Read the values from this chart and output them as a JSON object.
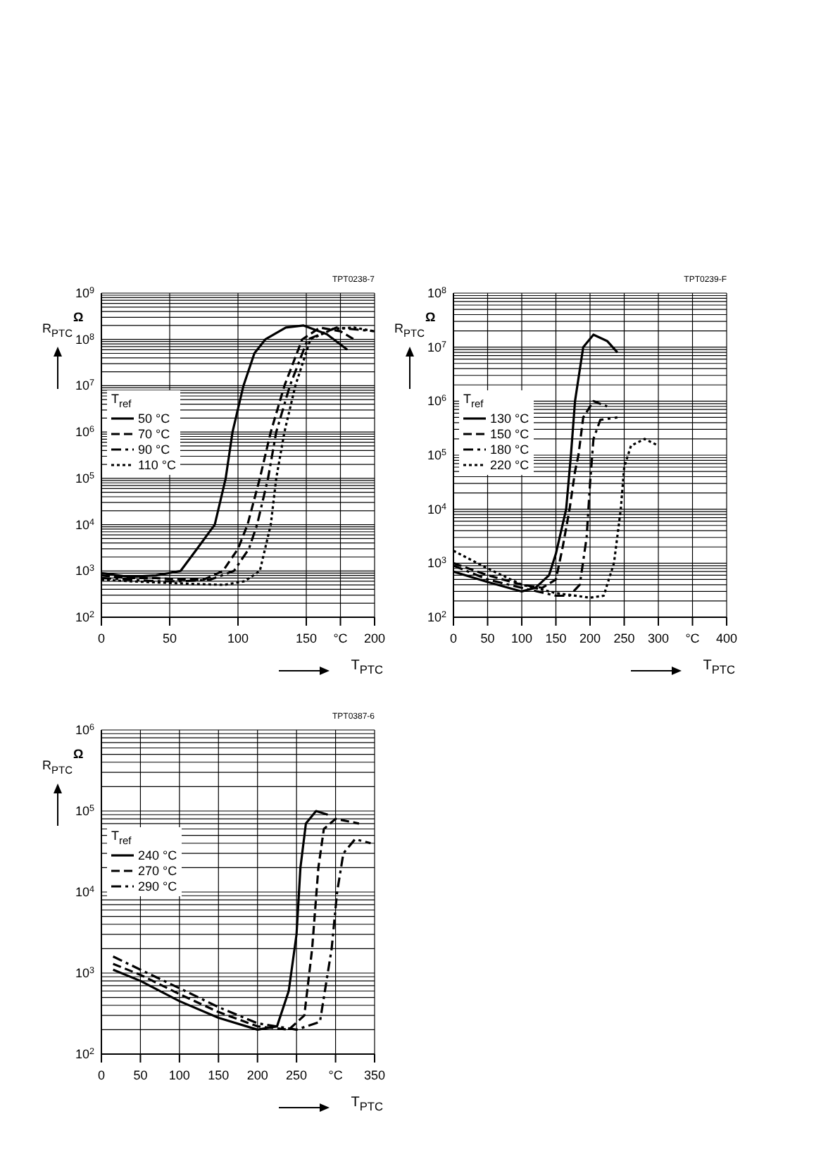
{
  "chart_data": [
    {
      "type": "line",
      "xlabel": "T$_{PTC}$",
      "ylabel": "R$_{PTC}$",
      "legend_title": "T$_{ref}$",
      "annotations": [
        "TPT0238-7",
        "Ω"
      ],
      "log": "y",
      "grid": true,
      "legend": "left",
      "marker": "none",
      "xlim": [
        0,
        200
      ],
      "xticks": [
        0,
        50,
        100,
        150,
        {
          "value": 175,
          "label": "°C"
        },
        200
      ],
      "ylim": [
        100,
        1000000000
      ],
      "yticks": [
        {
          "value": 100,
          "label": "10$^{2}$"
        },
        {
          "value": 1000,
          "label": "10$^{3}$"
        },
        {
          "value": 10000,
          "label": "10$^{4}$"
        },
        {
          "value": 100000,
          "label": "10$^{5}$"
        },
        {
          "value": 1000000,
          "label": "10$^{6}$"
        },
        {
          "value": 10000000,
          "label": "10$^{7}$"
        },
        {
          "value": 100000000,
          "label": "10$^{8}$"
        },
        {
          "value": 1000000000,
          "label": "10$^{9}$"
        }
      ],
      "series": [
        {
          "name": "50 °C",
          "color": "#000000",
          "line_style": "solid",
          "x": [
            0,
            20,
            40,
            50,
            58,
            70,
            83,
            91,
            96,
            104,
            112,
            120,
            135,
            148,
            165,
            180
          ],
          "values": [
            900,
            750,
            800,
            900,
            1000,
            3000,
            10000,
            100000,
            1000000,
            10000000,
            50000000,
            100000000,
            180000000,
            200000000,
            130000000,
            60000000
          ]
        },
        {
          "name": "70 °C",
          "color": "#000000",
          "line_style": "dashed",
          "x": [
            0,
            20,
            40,
            60,
            75,
            89,
            100,
            107,
            116,
            124,
            134,
            147,
            160,
            175,
            185
          ],
          "values": [
            800,
            700,
            700,
            650,
            650,
            1000,
            3000,
            10000,
            100000,
            1000000,
            10000000,
            100000000,
            180000000,
            150000000,
            100000000
          ]
        },
        {
          "name": "90 °C",
          "color": "#000000",
          "line_style": "dashdot",
          "x": [
            0,
            20,
            40,
            60,
            80,
            97,
            108,
            114,
            122,
            128,
            138,
            151,
            172,
            200
          ],
          "values": [
            700,
            650,
            600,
            600,
            650,
            1000,
            3000,
            10000,
            100000,
            1000000,
            10000000,
            100000000,
            180000000,
            150000000
          ]
        },
        {
          "name": "110 °C",
          "color": "#000000",
          "line_style": "dotted",
          "x": [
            0,
            20,
            50,
            70,
            90,
            105,
            116,
            124,
            128,
            134,
            142,
            153,
            170,
            185,
            200
          ],
          "values": [
            650,
            600,
            550,
            520,
            500,
            600,
            1000,
            10000,
            100000,
            1000000,
            10000000,
            100000000,
            170000000,
            180000000,
            150000000
          ]
        }
      ]
    },
    {
      "type": "line",
      "xlabel": "T$_{PTC}$",
      "ylabel": "R$_{PTC}$",
      "legend_title": "T$_{ref}$",
      "annotations": [
        "TPT0239-F",
        "Ω"
      ],
      "log": "y",
      "grid": true,
      "legend": "left",
      "marker": "none",
      "xlim": [
        0,
        400
      ],
      "xticks": [
        0,
        50,
        100,
        150,
        200,
        250,
        300,
        {
          "value": 350,
          "label": "°C"
        },
        400
      ],
      "ylim": [
        100,
        100000000
      ],
      "yticks": [
        {
          "value": 100,
          "label": "10$^{2}$"
        },
        {
          "value": 1000,
          "label": "10$^{3}$"
        },
        {
          "value": 10000,
          "label": "10$^{4}$"
        },
        {
          "value": 100000,
          "label": "10$^{5}$"
        },
        {
          "value": 1000000,
          "label": "10$^{6}$"
        },
        {
          "value": 10000000,
          "label": "10$^{7}$"
        },
        {
          "value": 100000000,
          "label": "10$^{8}$"
        }
      ],
      "series": [
        {
          "name": "130 °C",
          "color": "#000000",
          "line_style": "solid",
          "x": [
            0,
            50,
            100,
            120,
            140,
            150,
            165,
            172,
            178,
            190,
            205,
            225,
            240
          ],
          "values": [
            700,
            450,
            300,
            350,
            600,
            1500,
            10000,
            100000,
            1000000,
            10000000,
            17000000,
            13000000,
            8000000
          ]
        },
        {
          "name": "150 °C",
          "color": "#000000",
          "line_style": "dashed",
          "x": [
            0,
            50,
            100,
            130,
            150,
            160,
            170,
            178,
            183,
            190,
            205,
            225
          ],
          "values": [
            1000,
            600,
            400,
            350,
            500,
            2000,
            10000,
            50000,
            100000,
            500000,
            1000000,
            800000
          ]
        },
        {
          "name": "180 °C",
          "color": "#000000",
          "line_style": "dashdot",
          "x": [
            0,
            50,
            100,
            150,
            170,
            185,
            195,
            200,
            205,
            215,
            240
          ],
          "values": [
            900,
            500,
            350,
            250,
            250,
            400,
            3000,
            30000,
            200000,
            450000,
            500000
          ]
        },
        {
          "name": "220 °C",
          "color": "#000000",
          "line_style": "dotted",
          "x": [
            0,
            50,
            100,
            150,
            200,
            220,
            235,
            245,
            250,
            260,
            280,
            300
          ],
          "values": [
            1700,
            800,
            400,
            280,
            230,
            250,
            1000,
            10000,
            60000,
            150000,
            200000,
            150000
          ]
        }
      ]
    },
    {
      "type": "line",
      "xlabel": "T$_{PTC}$",
      "ylabel": "R$_{PTC}$",
      "legend_title": "T$_{ref}$",
      "annotations": [
        "TPT0387-6",
        "Ω"
      ],
      "log": "y",
      "grid": true,
      "legend": "left",
      "marker": "none",
      "xlim": [
        0,
        350
      ],
      "xticks": [
        0,
        50,
        100,
        150,
        200,
        250,
        {
          "value": 300,
          "label": "°C"
        },
        350
      ],
      "ylim": [
        100,
        1000000
      ],
      "yticks": [
        {
          "value": 100,
          "label": "10$^{2}$"
        },
        {
          "value": 1000,
          "label": "10$^{3}$"
        },
        {
          "value": 10000,
          "label": "10$^{4}$"
        },
        {
          "value": 100000,
          "label": "10$^{5}$"
        },
        {
          "value": 1000000,
          "label": "10$^{6}$"
        }
      ],
      "series": [
        {
          "name": "240 °C",
          "color": "#000000",
          "line_style": "solid",
          "x": [
            15,
            50,
            100,
            150,
            200,
            225,
            240,
            250,
            255,
            262,
            275,
            290
          ],
          "values": [
            1100,
            800,
            450,
            280,
            200,
            220,
            600,
            3000,
            20000,
            70000,
            100000,
            90000
          ]
        },
        {
          "name": "270 °C",
          "color": "#000000",
          "line_style": "dashed",
          "x": [
            15,
            50,
            100,
            150,
            200,
            240,
            260,
            270,
            278,
            285,
            300,
            330
          ],
          "values": [
            1300,
            950,
            550,
            330,
            220,
            200,
            300,
            2000,
            20000,
            60000,
            80000,
            70000
          ]
        },
        {
          "name": "290 °C",
          "color": "#000000",
          "line_style": "dashdot",
          "x": [
            15,
            50,
            100,
            150,
            200,
            250,
            280,
            295,
            302,
            310,
            325,
            345
          ],
          "values": [
            1600,
            1100,
            650,
            380,
            240,
            200,
            250,
            2000,
            10000,
            30000,
            45000,
            40000
          ]
        }
      ]
    }
  ]
}
